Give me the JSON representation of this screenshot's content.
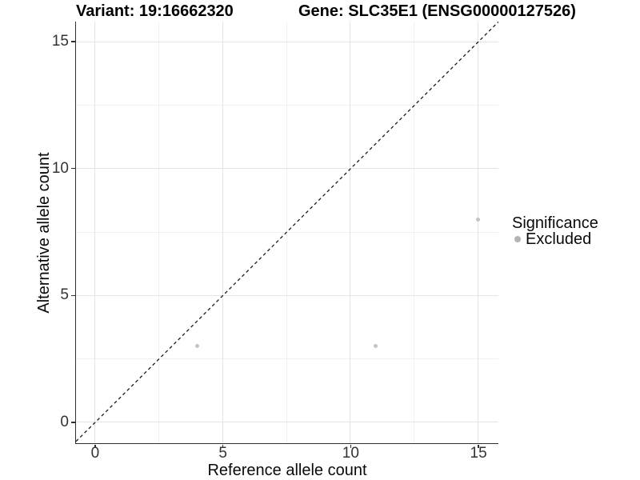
{
  "titles": {
    "variant": "Variant: 19:16662320",
    "gene": "Gene: SLC35E1 (ENSG00000127526)"
  },
  "axes": {
    "x_label": "Reference allele count",
    "y_label": "Alternative allele count"
  },
  "legend": {
    "title": "Significance",
    "items": [
      {
        "label": "Excluded",
        "color": "#b4b4b4"
      }
    ]
  },
  "colors": {
    "point": "#c4c4c4",
    "grid_major": "#e4e4e4",
    "grid_minor": "#f1f1f1",
    "axis_line": "#2f2f2f",
    "reference_line": "#1a1a1a"
  },
  "chart_data": {
    "type": "scatter",
    "title": "Variant: 19:16662320   Gene: SLC35E1 (ENSG00000127526)",
    "xlabel": "Reference allele count",
    "ylabel": "Alternative allele count",
    "xlim": [
      -0.75,
      15.78
    ],
    "ylim": [
      -0.82,
      15.79
    ],
    "x_ticks": [
      0,
      5,
      10,
      15
    ],
    "y_ticks": [
      0,
      5,
      10,
      15
    ],
    "x_minor_ticks": [
      2.5,
      7.5,
      12.5
    ],
    "y_minor_ticks": [
      2.5,
      7.5,
      12.5
    ],
    "grid": true,
    "legend_position": "right",
    "series": [
      {
        "name": "Excluded",
        "color": "#c4c4c4",
        "points": [
          {
            "x": 4,
            "y": 3
          },
          {
            "x": 11,
            "y": 3
          },
          {
            "x": 15,
            "y": 8
          }
        ]
      }
    ],
    "reference_line": {
      "kind": "identity y=x",
      "style": "dashed",
      "color": "#1a1a1a"
    }
  }
}
